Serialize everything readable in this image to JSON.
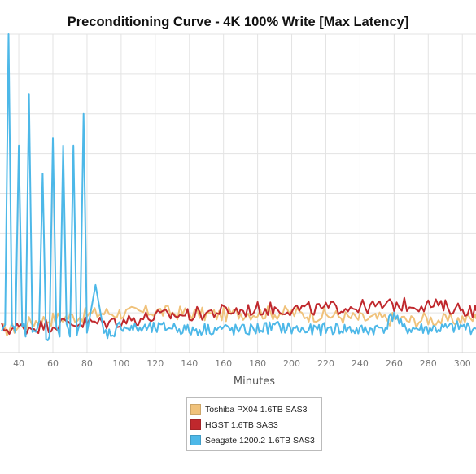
{
  "chart_data": {
    "type": "line",
    "title": "Preconditioning Curve - 4K 100% Write [Max Latency]",
    "xlabel": "Minutes",
    "ylabel": "",
    "xlim": [
      29,
      308
    ],
    "ylim": [
      0,
      80
    ],
    "x_ticks": [
      40,
      60,
      80,
      100,
      120,
      140,
      160,
      180,
      200,
      220,
      240,
      260,
      280,
      300
    ],
    "grid": true,
    "legend_position": "bottom-center",
    "series": [
      {
        "name": "Toshiba PX04 1.6TB SAS3",
        "color": "#F0C27B",
        "x": [
          30,
          40,
          50,
          60,
          70,
          80,
          90,
          100,
          110,
          120,
          130,
          140,
          150,
          160,
          170,
          180,
          190,
          200,
          210,
          220,
          230,
          240,
          250,
          260,
          270,
          280,
          290,
          300,
          308
        ],
        "y": [
          5.5,
          6.5,
          8,
          8.5,
          9,
          9.5,
          10,
          10,
          10,
          10.5,
          10,
          10,
          9.5,
          9.5,
          10,
          10,
          10,
          10,
          9.5,
          9.5,
          9,
          8.5,
          8.5,
          8.5,
          8,
          8.5,
          8,
          8.5,
          8.5
        ]
      },
      {
        "name": "HGST 1.6TB SAS3",
        "color": "#C0282D",
        "x": [
          30,
          40,
          50,
          60,
          70,
          80,
          90,
          100,
          110,
          120,
          130,
          140,
          150,
          160,
          170,
          180,
          190,
          200,
          210,
          220,
          230,
          240,
          250,
          260,
          270,
          280,
          290,
          300,
          308
        ],
        "y": [
          6,
          6.2,
          6.5,
          7,
          7.5,
          7.5,
          7.5,
          8,
          8.5,
          9,
          9.5,
          9.5,
          10,
          10.5,
          10.5,
          11,
          11,
          11,
          11,
          11,
          11.5,
          11.5,
          11.5,
          12,
          12,
          12,
          11.5,
          11,
          10.5
        ]
      },
      {
        "name": "Seagate 1200.2 1.6TB SAS3",
        "color": "#4DB8E8",
        "x": [
          30,
          32,
          34,
          36,
          38,
          40,
          42,
          44,
          46,
          48,
          50,
          52,
          54,
          56,
          58,
          60,
          62,
          64,
          66,
          68,
          70,
          72,
          74,
          76,
          78,
          80,
          85,
          90,
          95,
          100,
          105,
          110,
          120,
          130,
          140,
          150,
          160,
          170,
          180,
          190,
          200,
          210,
          220,
          230,
          240,
          250,
          255,
          260,
          265,
          270,
          280,
          290,
          300,
          308
        ],
        "y": [
          4,
          7,
          80,
          6,
          5,
          52,
          8,
          4,
          65,
          6,
          4,
          8,
          45,
          5,
          4,
          54,
          7,
          4,
          52,
          6,
          4,
          52,
          4,
          7,
          60,
          5,
          17,
          5,
          5,
          7,
          6,
          6,
          6,
          6.5,
          5.5,
          6,
          6,
          5.5,
          6,
          6.5,
          6,
          5.5,
          6,
          6,
          5.5,
          6,
          6.5,
          10,
          6,
          6,
          6,
          6,
          6.5,
          6
        ]
      }
    ]
  }
}
